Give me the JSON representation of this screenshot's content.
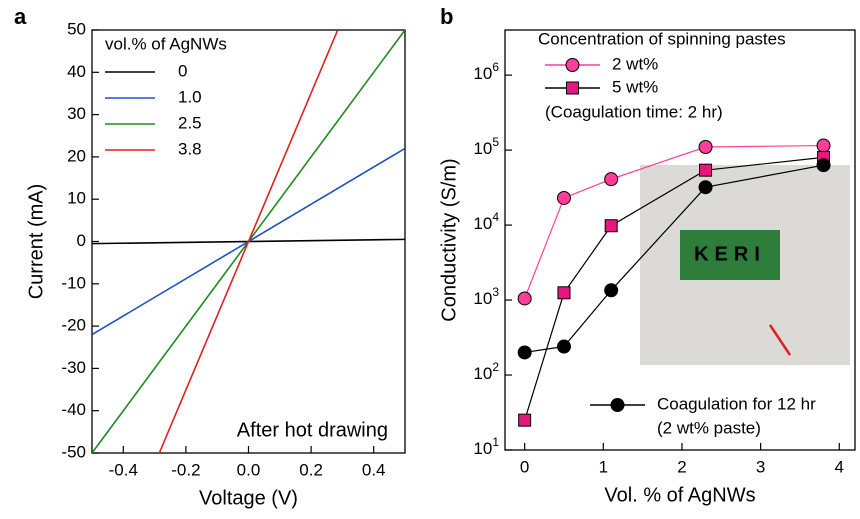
{
  "chart_data": [
    {
      "type": "line",
      "panel": "a",
      "xlabel": "Voltage (V)",
      "ylabel": "Current (mA)",
      "legend_title": "vol.% of AgNWs",
      "annotation": "After hot drawing",
      "xlim": [
        -0.5,
        0.5
      ],
      "ylim": [
        -50,
        50
      ],
      "xticks": [
        -0.4,
        -0.2,
        {
          "value": 0,
          "label": "0.0"
        },
        0.2,
        0.4
      ],
      "yticks": [
        -50,
        -40,
        -30,
        -20,
        -10,
        0,
        10,
        20,
        30,
        40,
        50
      ],
      "series": [
        {
          "name": "0",
          "color": "#000000",
          "x": [
            -0.5,
            0.5
          ],
          "values": [
            -0.5,
            0.5
          ]
        },
        {
          "name": "1.0",
          "color": "#1f4fc8",
          "x": [
            -0.5,
            0.5
          ],
          "values": [
            -22,
            22
          ]
        },
        {
          "name": "2.5",
          "color": "#1e8a1e",
          "x": [
            -0.5,
            0.5
          ],
          "values": [
            -50,
            50
          ]
        },
        {
          "name": "3.8",
          "color": "#e02020",
          "x": [
            -0.285,
            0.285
          ],
          "values": [
            -50,
            50
          ]
        }
      ]
    },
    {
      "type": "line",
      "panel": "b",
      "log_y": true,
      "xlabel": "Vol. % of AgNWs",
      "ylabel": "Conductivity (S/m)",
      "legend_title": "Concentration of spinning pastes",
      "note_1": "(Coagulation time: 2 hr)",
      "note_2": "(2 wt% paste)",
      "inset_text": "KERI",
      "xlim": [
        -0.25,
        4.2
      ],
      "ylim": [
        10,
        4000000
      ],
      "xticks": [
        0,
        1,
        2,
        3,
        4
      ],
      "yticks": [
        {
          "value": 10,
          "label": "10",
          "sup": "1"
        },
        {
          "value": 100,
          "label": "10",
          "sup": "2"
        },
        {
          "value": 1000,
          "label": "10",
          "sup": "3"
        },
        {
          "value": 10000,
          "label": "10",
          "sup": "4"
        },
        {
          "value": 100000,
          "label": "10",
          "sup": "5"
        },
        {
          "value": 1000000,
          "label": "10",
          "sup": "6"
        }
      ],
      "series": [
        {
          "name": "2 wt%",
          "color": "#ff3e9a",
          "marker": "circle",
          "x": [
            0,
            0.5,
            1.1,
            2.3,
            3.8
          ],
          "values": [
            1050,
            23000,
            41000,
            110000,
            115000
          ]
        },
        {
          "name": "5 wt%",
          "color": "#e8177f",
          "line_color": "#000000",
          "marker": "square",
          "x": [
            0,
            0.5,
            1.1,
            2.3,
            3.8
          ],
          "values": [
            25,
            1250,
            9800,
            54000,
            80000
          ]
        },
        {
          "name": "Coagulation for 12 hr",
          "color": "#000000",
          "marker": "circle",
          "x": [
            0,
            0.5,
            1.1,
            2.3,
            3.8
          ],
          "values": [
            200,
            240,
            1350,
            32000,
            63000
          ]
        }
      ]
    }
  ]
}
